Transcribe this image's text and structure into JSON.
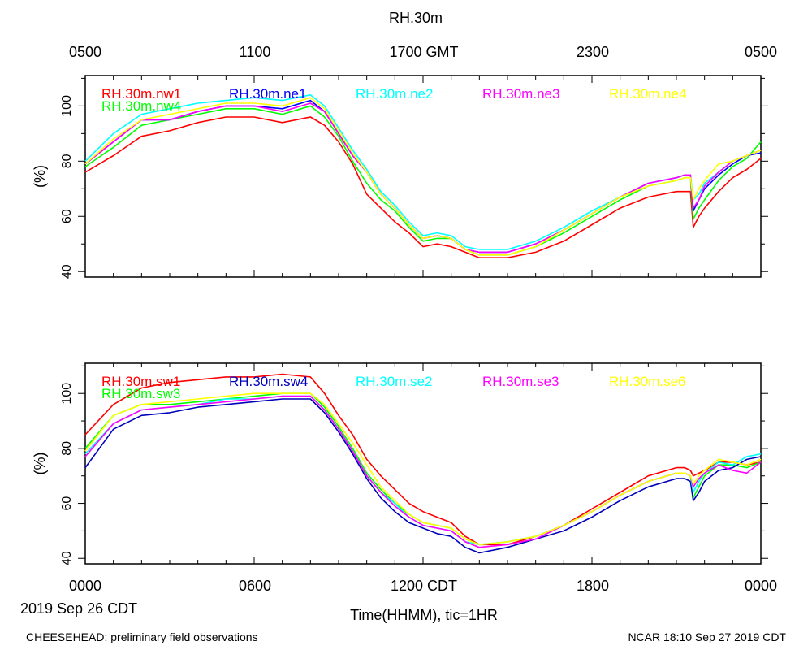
{
  "page": {
    "title": "RH.30m",
    "top_axis_ticks": [
      "0500",
      "1100",
      "1700 GMT",
      "2300",
      "0500"
    ],
    "bottom_axis_ticks": [
      "0000",
      "0600",
      "1200 CDT",
      "1800",
      "0000"
    ],
    "date_label": "2019 Sep 26 CDT",
    "xlabel": "Time(HHMM), tic=1HR",
    "footer_left": "CHEESEHEAD: preliminary field observations",
    "footer_right": "NCAR 18:10 Sep 27 2019 CDT"
  },
  "chart_data": [
    {
      "type": "line",
      "ylabel": "(%)",
      "xlim": [
        0,
        24
      ],
      "ylim": [
        38,
        111
      ],
      "yticks": [
        40,
        60,
        80,
        100
      ],
      "series": [
        {
          "name": "RH.30m.nw1",
          "color": "#ff0000",
          "x": [
            0,
            1,
            2,
            3,
            4,
            5,
            6,
            7,
            8,
            8.5,
            9,
            9.5,
            10,
            10.5,
            11,
            11.5,
            12,
            12.5,
            13,
            13.5,
            14,
            15,
            16,
            17,
            18,
            19,
            20,
            21,
            21.3,
            21.5,
            21.6,
            21.8,
            22,
            22.5,
            23,
            23.5,
            24
          ],
          "y": [
            76,
            82,
            89,
            91,
            94,
            96,
            96,
            94,
            96,
            93,
            87,
            79,
            68,
            63,
            58,
            54,
            49,
            50,
            49,
            47,
            45,
            45,
            47,
            51,
            57,
            63,
            67,
            69,
            69,
            69,
            56,
            60,
            63,
            69,
            74,
            77,
            81
          ]
        },
        {
          "name": "RH.30m.nw4",
          "color": "#00ff00",
          "x": [
            0,
            1,
            2,
            3,
            4,
            5,
            6,
            7,
            8,
            8.5,
            9,
            9.5,
            10,
            10.5,
            11,
            11.5,
            12,
            12.5,
            13,
            13.5,
            14,
            15,
            16,
            17,
            18,
            19,
            20,
            21,
            21.3,
            21.5,
            21.6,
            21.8,
            22,
            22.5,
            23,
            23.5,
            24
          ],
          "y": [
            78,
            85,
            93,
            95,
            97,
            99,
            99,
            97,
            100,
            96,
            89,
            80,
            72,
            66,
            62,
            56,
            51,
            52,
            52,
            48,
            46,
            46,
            49,
            54,
            60,
            66,
            71,
            73,
            74,
            74,
            59,
            63,
            66,
            73,
            78,
            81,
            87
          ]
        },
        {
          "name": "RH.30m.ne1",
          "color": "#0000ff",
          "x": [
            0,
            1,
            2,
            3,
            4,
            5,
            6,
            7,
            8,
            8.5,
            9,
            9.5,
            10,
            10.5,
            11,
            11.5,
            12,
            12.5,
            13,
            13.5,
            14,
            15,
            16,
            17,
            18,
            19,
            20,
            21,
            21.3,
            21.5,
            21.6,
            21.8,
            22,
            22.5,
            23,
            23.5,
            24
          ],
          "y": [
            79,
            87,
            95,
            95,
            98,
            100,
            100,
            99,
            102,
            98,
            90,
            82,
            76,
            68,
            63,
            57,
            52,
            53,
            52,
            48,
            47,
            47,
            50,
            55,
            61,
            67,
            72,
            74,
            75,
            75,
            62,
            66,
            70,
            75,
            79,
            82,
            83
          ]
        },
        {
          "name": "RH.30m.ne2",
          "color": "#00ffff",
          "x": [
            0,
            1,
            2,
            3,
            4,
            5,
            6,
            7,
            8,
            8.5,
            9,
            9.5,
            10,
            10.5,
            11,
            11.5,
            12,
            12.5,
            13,
            13.5,
            14,
            15,
            16,
            17,
            18,
            19,
            20,
            21,
            21.3,
            21.5,
            21.6,
            21.8,
            22,
            22.5,
            23,
            23.5,
            24
          ],
          "y": [
            80,
            90,
            97,
            99,
            101,
            102,
            103,
            102,
            104,
            100,
            92,
            84,
            77,
            69,
            64,
            58,
            53,
            54,
            53,
            49,
            48,
            48,
            51,
            56,
            62,
            67,
            72,
            74,
            75,
            75,
            66,
            68,
            72,
            76,
            80,
            82,
            84
          ]
        },
        {
          "name": "RH.30m.ne3",
          "color": "#ff00ff",
          "x": [
            0,
            1,
            2,
            3,
            4,
            5,
            6,
            7,
            8,
            8.5,
            9,
            9.5,
            10,
            10.5,
            11,
            11.5,
            12,
            12.5,
            13,
            13.5,
            14,
            15,
            16,
            17,
            18,
            19,
            20,
            21,
            21.3,
            21.5,
            21.6,
            21.8,
            22,
            22.5,
            23,
            23.5,
            24
          ],
          "y": [
            79,
            87,
            95,
            95,
            98,
            100,
            100,
            98,
            101,
            98,
            90,
            82,
            76,
            68,
            63,
            57,
            52,
            53,
            52,
            48,
            47,
            47,
            50,
            55,
            61,
            67,
            72,
            74,
            75,
            75,
            63,
            66,
            71,
            76,
            80,
            82,
            84
          ]
        },
        {
          "name": "RH.30m.ne4",
          "color": "#ffff00",
          "x": [
            0,
            1,
            2,
            3,
            4,
            5,
            6,
            7,
            8,
            8.5,
            9,
            9.5,
            10,
            10.5,
            11,
            11.5,
            12,
            12.5,
            13,
            13.5,
            14,
            15,
            16,
            17,
            18,
            19,
            20,
            21,
            21.3,
            21.5,
            21.6,
            21.8,
            22,
            22.5,
            23,
            23.5,
            24
          ],
          "y": [
            79,
            88,
            95,
            97,
            99,
            101,
            101,
            100,
            103,
            99,
            91,
            83,
            76,
            68,
            63,
            57,
            52,
            53,
            52,
            48,
            46,
            46,
            49,
            55,
            61,
            67,
            71,
            73,
            74,
            74,
            66,
            70,
            73,
            79,
            80,
            82,
            84
          ]
        }
      ]
    },
    {
      "type": "line",
      "ylabel": "(%)",
      "xlim": [
        0,
        24
      ],
      "ylim": [
        38,
        111
      ],
      "yticks": [
        40,
        60,
        80,
        100
      ],
      "series": [
        {
          "name": "RH.30m.sw1",
          "color": "#ff0000",
          "x": [
            0,
            1,
            2,
            3,
            4,
            5,
            6,
            7,
            8,
            8.5,
            9,
            9.5,
            10,
            10.5,
            11,
            11.5,
            12,
            12.5,
            13,
            13.5,
            14,
            15,
            16,
            17,
            18,
            19,
            20,
            21,
            21.3,
            21.5,
            21.6,
            21.8,
            22,
            22.5,
            23,
            23.5,
            24
          ],
          "y": [
            85,
            96,
            102,
            104,
            105,
            106,
            106,
            107,
            106,
            100,
            92,
            85,
            76,
            70,
            65,
            60,
            57,
            55,
            53,
            48,
            45,
            45,
            48,
            52,
            58,
            64,
            70,
            73,
            73,
            72,
            70,
            71,
            72,
            75,
            75,
            74,
            75
          ]
        },
        {
          "name": "RH.30m.sw3",
          "color": "#00ff00",
          "x": [
            0,
            1,
            2,
            3,
            4,
            5,
            6,
            7,
            8,
            8.5,
            9,
            9.5,
            10,
            10.5,
            11,
            11.5,
            12,
            12.5,
            13,
            13.5,
            14,
            15,
            16,
            17,
            18,
            19,
            20,
            21,
            21.3,
            21.5,
            21.6,
            21.8,
            22,
            22.5,
            23,
            23.5,
            24
          ],
          "y": [
            80,
            92,
            96,
            96,
            97,
            98,
            99,
            100,
            100,
            95,
            88,
            80,
            71,
            65,
            60,
            56,
            53,
            52,
            51,
            47,
            45,
            46,
            48,
            52,
            57,
            63,
            68,
            71,
            71,
            70,
            62,
            66,
            70,
            74,
            74,
            73,
            75
          ]
        },
        {
          "name": "RH.30m.sw4",
          "color": "#0000bb",
          "x": [
            0,
            1,
            2,
            3,
            4,
            5,
            6,
            7,
            8,
            8.5,
            9,
            9.5,
            10,
            10.5,
            11,
            11.5,
            12,
            12.5,
            13,
            13.5,
            14,
            15,
            16,
            17,
            18,
            19,
            20,
            21,
            21.3,
            21.5,
            21.6,
            21.8,
            22,
            22.5,
            23,
            23.5,
            24
          ],
          "y": [
            73,
            87,
            92,
            93,
            95,
            96,
            97,
            98,
            98,
            93,
            86,
            78,
            69,
            62,
            57,
            53,
            51,
            49,
            48,
            44,
            42,
            44,
            47,
            50,
            55,
            61,
            66,
            69,
            69,
            68,
            61,
            64,
            68,
            72,
            73,
            76,
            77
          ]
        },
        {
          "name": "RH.30m.se2",
          "color": "#00ffff",
          "x": [
            0,
            1,
            2,
            3,
            4,
            5,
            6,
            7,
            8,
            8.5,
            9,
            9.5,
            10,
            10.5,
            11,
            11.5,
            12,
            12.5,
            13,
            13.5,
            14,
            15,
            16,
            17,
            18,
            19,
            20,
            21,
            21.3,
            21.5,
            21.6,
            21.8,
            22,
            22.5,
            23,
            23.5,
            24
          ],
          "y": [
            78,
            89,
            94,
            95,
            96,
            98,
            98,
            99,
            99,
            94,
            87,
            79,
            70,
            64,
            60,
            55,
            52,
            51,
            50,
            46,
            45,
            46,
            48,
            52,
            57,
            63,
            68,
            71,
            71,
            70,
            64,
            68,
            71,
            75,
            74,
            77,
            78
          ]
        },
        {
          "name": "RH.30m.se3",
          "color": "#ff00ff",
          "x": [
            0,
            1,
            2,
            3,
            4,
            5,
            6,
            7,
            8,
            8.5,
            9,
            9.5,
            10,
            10.5,
            11,
            11.5,
            12,
            12.5,
            13,
            13.5,
            14,
            15,
            16,
            17,
            18,
            19,
            20,
            21,
            21.3,
            21.5,
            21.6,
            21.8,
            22,
            22.5,
            23,
            23.5,
            24
          ],
          "y": [
            77,
            89,
            94,
            95,
            96,
            97,
            98,
            99,
            99,
            94,
            87,
            79,
            70,
            64,
            59,
            55,
            52,
            51,
            50,
            46,
            44,
            45,
            47,
            52,
            57,
            63,
            68,
            71,
            71,
            70,
            66,
            69,
            71,
            74,
            72,
            71,
            75
          ]
        },
        {
          "name": "RH.30m.se6",
          "color": "#ffff00",
          "x": [
            0,
            1,
            2,
            3,
            4,
            5,
            6,
            7,
            8,
            8.5,
            9,
            9.5,
            10,
            10.5,
            11,
            11.5,
            12,
            12.5,
            13,
            13.5,
            14,
            15,
            16,
            17,
            18,
            19,
            20,
            21,
            21.3,
            21.5,
            21.6,
            21.8,
            22,
            22.5,
            23,
            23.5,
            24
          ],
          "y": [
            79,
            92,
            96,
            97,
            98,
            99,
            100,
            100,
            100,
            96,
            89,
            82,
            74,
            66,
            61,
            56,
            53,
            52,
            51,
            47,
            45,
            46,
            48,
            52,
            57,
            63,
            68,
            71,
            71,
            70,
            67,
            70,
            72,
            76,
            75,
            74,
            76
          ]
        }
      ]
    }
  ]
}
